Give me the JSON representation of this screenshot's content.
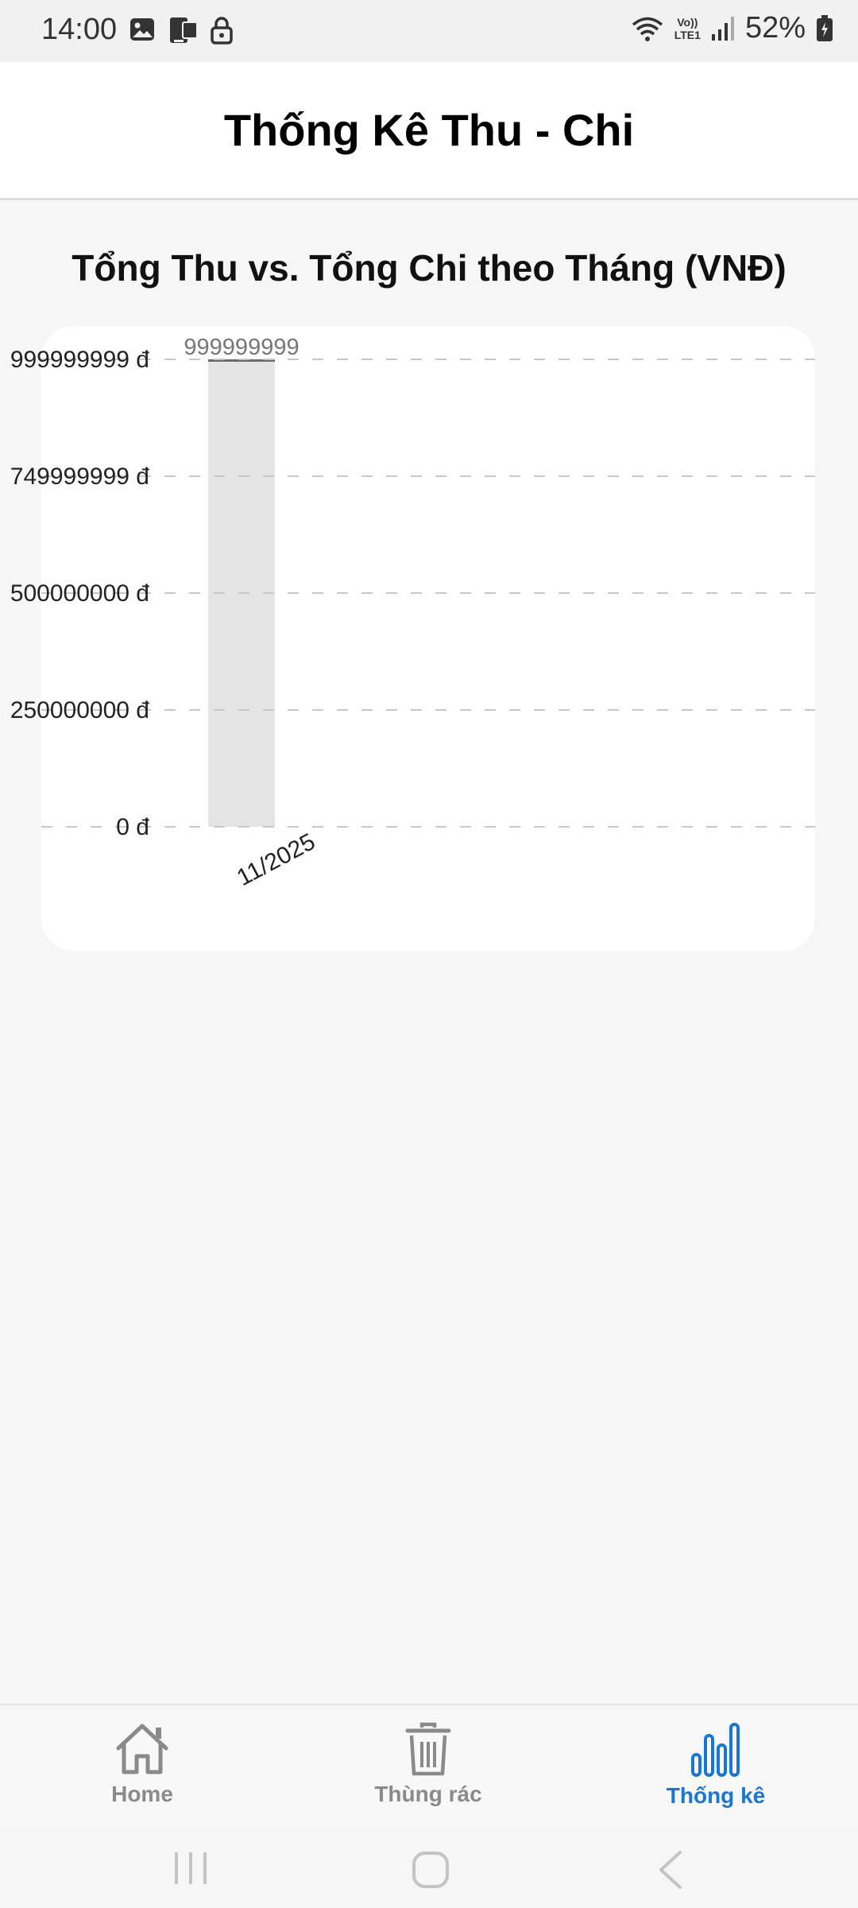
{
  "status_bar": {
    "time": "14:00",
    "battery_percent": "52%",
    "network_top": "Vo))",
    "network_bottom": "LTE1",
    "icons": [
      "image-icon",
      "screen-cast-icon",
      "lock-icon",
      "wifi-icon",
      "signal-icon",
      "battery-icon"
    ]
  },
  "header": {
    "title": "Thống Kê Thu - Chi"
  },
  "chart": {
    "title": "Tổng Thu vs. Tổng Chi theo Tháng (VNĐ)"
  },
  "chart_data": {
    "type": "bar",
    "title": "Tổng Thu vs. Tổng Chi theo Tháng (VNĐ)",
    "categories": [
      "11/2025"
    ],
    "series": [
      {
        "values": [
          999999999
        ],
        "color": "#e4e4e4"
      }
    ],
    "data_labels": [
      "999999999"
    ],
    "y_tick_labels": [
      "999999999 đ",
      "749999999 đ",
      "500000000 đ",
      "250000000 đ",
      "0 đ"
    ],
    "ylim": [
      0,
      999999999
    ],
    "grid": true,
    "grid_style": "dashed"
  },
  "bottom_nav": {
    "items": [
      {
        "label": "Home",
        "icon": "home-icon",
        "active": false
      },
      {
        "label": "Thùng rác",
        "icon": "trash-icon",
        "active": false
      },
      {
        "label": "Thống kê",
        "icon": "bar-chart-icon",
        "active": true
      }
    ],
    "active_color": "#1976d2",
    "inactive_color": "#8a8a8a"
  }
}
